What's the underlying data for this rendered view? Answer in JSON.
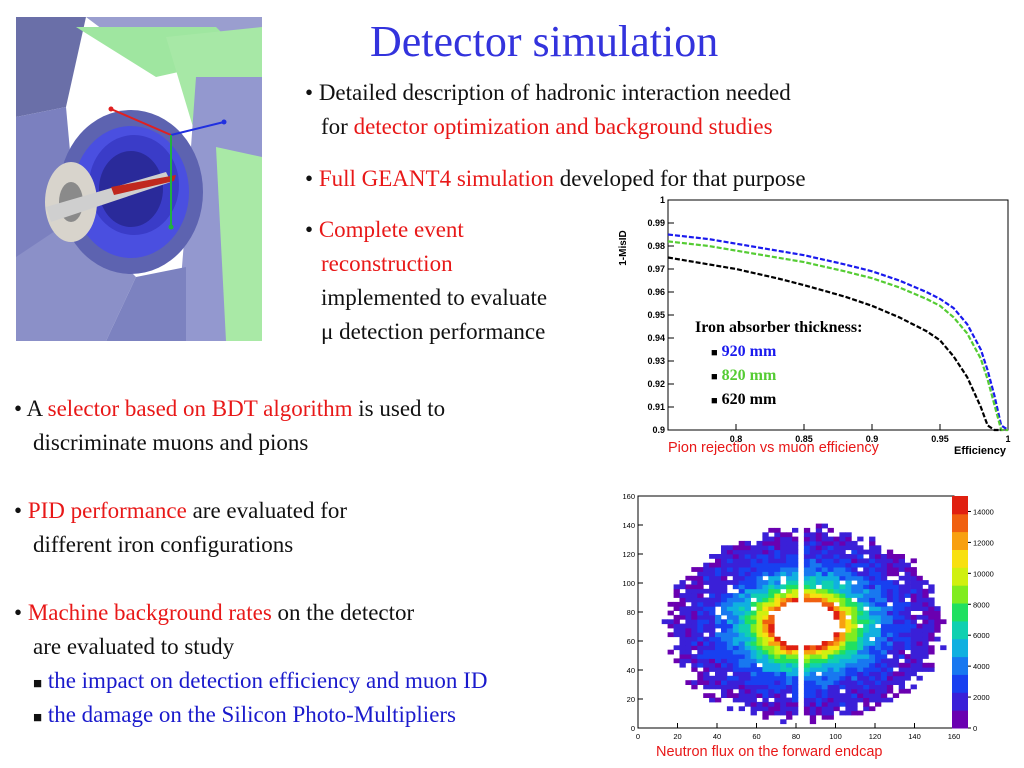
{
  "slide": {
    "title": "Detector simulation",
    "bullet1": {
      "prefix": "Detailed description of hadronic interaction needed",
      "line2a": "for ",
      "line2b": "detector optimization and background studies"
    },
    "bullet2": {
      "red": "Full GEANT4 simulation",
      "rest": " developed for that purpose"
    },
    "bullet3": {
      "red1": "Complete event",
      "red2": "reconstruction",
      "l3": "implemented to evaluate",
      "l4": "μ detection performance"
    },
    "bullet4": {
      "a": "A ",
      "red": "selector based on BDT algorithm",
      "rest": " is used to",
      "l2": "discriminate muons and pions"
    },
    "bullet5": {
      "red": "PID performance",
      "rest": " are evaluated for",
      "l2": "different iron configurations"
    },
    "bullet6": {
      "red": "Machine background rates",
      "rest": " on the detector",
      "l2": "are evaluated to study",
      "sub1": "the impact on detection efficiency and muon ID",
      "sub2": "the damage on the Silicon Photo-Multipliers"
    },
    "caption_pion": "Pion rejection vs muon efficiency",
    "caption_neutron": "Neutron flux on the forward endcap"
  },
  "colors": {
    "title": "#3333dd",
    "highlight": "#e81818",
    "sub": "#1a1acc",
    "s920": "#1a1aee",
    "s820": "#55cc33",
    "s620": "#000000"
  },
  "chart_data": [
    {
      "type": "line",
      "xlabel": "Efficiency",
      "ylabel": "1-MisID",
      "xlim": [
        0.75,
        1.0
      ],
      "ylim": [
        0.9,
        1.0
      ],
      "x_ticks": [
        "0.8",
        "0.85",
        "0.9",
        "0.95",
        "1"
      ],
      "y_ticks": [
        "0.9",
        "0.91",
        "0.92",
        "0.93",
        "0.94",
        "0.95",
        "0.96",
        "0.97",
        "0.98",
        "0.99",
        "1"
      ],
      "legend_title": "Iron absorber thickness:",
      "series": [
        {
          "name": "920 mm",
          "color": "#1a1aee",
          "x": [
            0.75,
            0.78,
            0.8,
            0.83,
            0.85,
            0.88,
            0.9,
            0.92,
            0.94,
            0.95,
            0.96,
            0.97,
            0.98,
            0.985,
            0.99,
            0.995,
            1.0
          ],
          "y": [
            0.985,
            0.983,
            0.981,
            0.978,
            0.976,
            0.972,
            0.969,
            0.965,
            0.96,
            0.957,
            0.953,
            0.946,
            0.935,
            0.926,
            0.915,
            0.902,
            0.9
          ]
        },
        {
          "name": "820 mm",
          "color": "#55cc33",
          "x": [
            0.75,
            0.78,
            0.8,
            0.83,
            0.85,
            0.88,
            0.9,
            0.92,
            0.94,
            0.95,
            0.96,
            0.97,
            0.98,
            0.985,
            0.99,
            0.995,
            1.0
          ],
          "y": [
            0.982,
            0.98,
            0.978,
            0.975,
            0.973,
            0.969,
            0.966,
            0.962,
            0.957,
            0.954,
            0.949,
            0.942,
            0.931,
            0.922,
            0.911,
            0.9,
            0.9
          ]
        },
        {
          "name": "620 mm",
          "color": "#000000",
          "x": [
            0.75,
            0.78,
            0.8,
            0.83,
            0.85,
            0.88,
            0.9,
            0.92,
            0.94,
            0.95,
            0.96,
            0.97,
            0.98,
            0.985,
            0.99,
            0.995
          ],
          "y": [
            0.975,
            0.972,
            0.97,
            0.966,
            0.963,
            0.958,
            0.954,
            0.949,
            0.943,
            0.939,
            0.932,
            0.923,
            0.91,
            0.902,
            0.9,
            0.9
          ]
        }
      ]
    },
    {
      "type": "heatmap",
      "xlim": [
        0,
        160
      ],
      "ylim": [
        0,
        160
      ],
      "x_ticks": [
        "0",
        "20",
        "40",
        "60",
        "80",
        "100",
        "120",
        "140",
        "160"
      ],
      "y_ticks": [
        "0",
        "20",
        "40",
        "60",
        "80",
        "100",
        "120",
        "140",
        "160"
      ],
      "colorbar_ticks": [
        "0",
        "2000",
        "4000",
        "6000",
        "8000",
        "10000",
        "12000",
        "14000"
      ],
      "colorbar_range": [
        0,
        15000
      ],
      "center": [
        83,
        70
      ],
      "inner_radius": 16,
      "outer_radius": 62
    }
  ]
}
